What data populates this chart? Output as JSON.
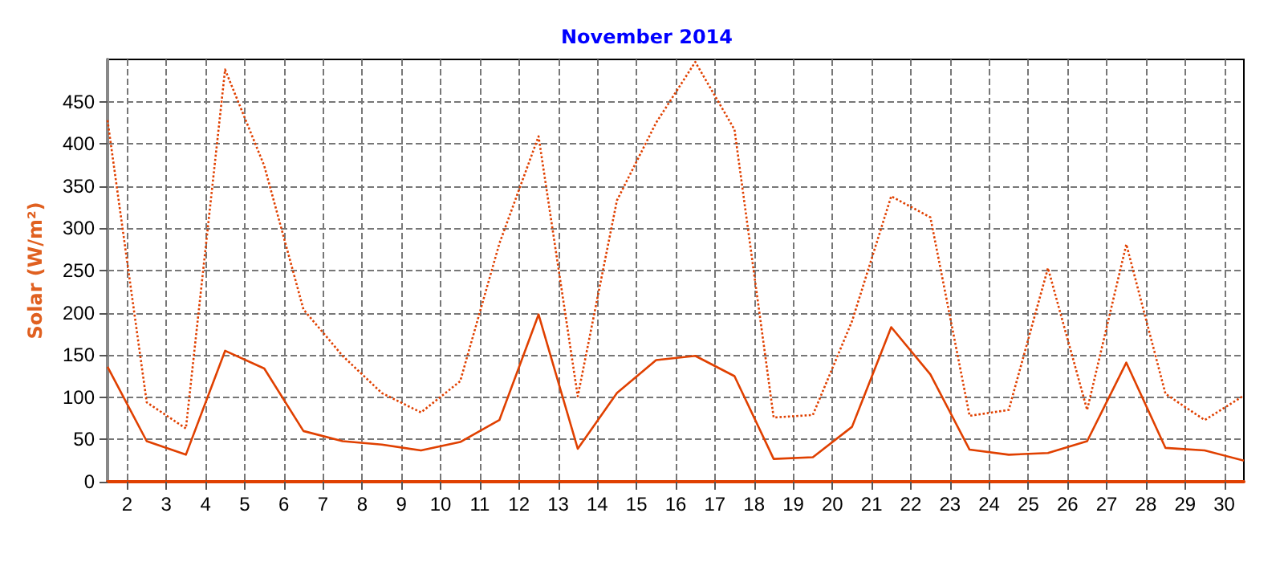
{
  "chart_data": {
    "type": "line",
    "title": "November 2014",
    "ylabel": "Solar (W/m²)",
    "x": [
      1.5,
      2.5,
      3.5,
      4.5,
      5.5,
      6.5,
      7.5,
      8.5,
      9.5,
      10.5,
      11.5,
      12.5,
      13.5,
      14.5,
      15.5,
      16.5,
      17.5,
      18.5,
      19.5,
      20.5,
      21.5,
      22.5,
      23.5,
      24.5,
      25.5,
      26.5,
      27.5,
      28.5,
      29.5,
      30.5
    ],
    "xlim": [
      1.5,
      30.5
    ],
    "xticks": [
      2,
      3,
      4,
      5,
      6,
      7,
      8,
      9,
      10,
      11,
      12,
      13,
      14,
      15,
      16,
      17,
      18,
      19,
      20,
      21,
      22,
      23,
      24,
      25,
      26,
      27,
      28,
      29,
      30
    ],
    "ylim": [
      0,
      500
    ],
    "yticks": [
      0,
      50,
      100,
      150,
      200,
      250,
      300,
      350,
      400,
      450
    ],
    "grid": true,
    "marker": "none",
    "series": [
      {
        "color": "#e04000",
        "line_style": "dotted",
        "values": [
          428,
          94,
          63,
          488,
          374,
          204,
          149,
          105,
          82,
          119,
          282,
          409,
          101,
          333,
          425,
          497,
          417,
          76,
          79,
          190,
          338,
          313,
          78,
          85,
          253,
          85,
          281,
          104,
          73,
          102
        ]
      },
      {
        "color": "#e04000",
        "line_style": "solid",
        "values": [
          136,
          48,
          32,
          155,
          134,
          60,
          48,
          44,
          37,
          47,
          73,
          198,
          39,
          105,
          144,
          149,
          125,
          27,
          29,
          65,
          183,
          127,
          38,
          32,
          34,
          48,
          141,
          40,
          37,
          25
        ]
      }
    ]
  }
}
